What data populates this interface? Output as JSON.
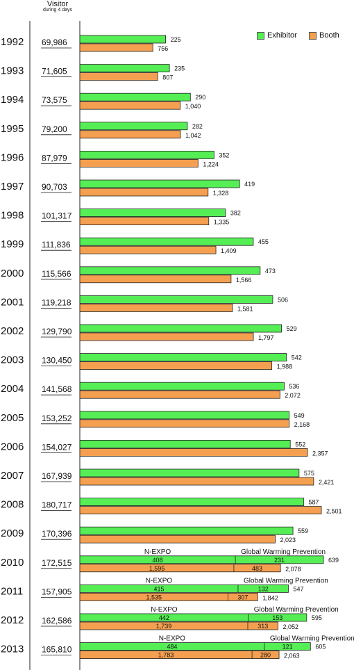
{
  "header": {
    "visitor_label": "Visitor",
    "visitor_sub": "during 4 days"
  },
  "legend": [
    {
      "name": "Exhibitor",
      "color": "#55ee55"
    },
    {
      "name": "Booth",
      "color": "#f5a050"
    }
  ],
  "chart_data": {
    "type": "bar",
    "categories": [
      "1992",
      "1993",
      "1994",
      "1995",
      "1996",
      "1997",
      "1998",
      "1999",
      "2000",
      "2001",
      "2002",
      "2003",
      "2004",
      "2005",
      "2006",
      "2007",
      "2008",
      "2009",
      "2010",
      "2011",
      "2012",
      "2013"
    ],
    "visitors": [
      "69,986",
      "71,605",
      "73,575",
      "79,200",
      "87,979",
      "90,703",
      "101,317",
      "111,836",
      "115,566",
      "119,218",
      "129,790",
      "130,450",
      "141,568",
      "153,252",
      "154,027",
      "167,939",
      "180,717",
      "170,396",
      "172,515",
      "157,905",
      "162,586",
      "165,810"
    ],
    "series": [
      {
        "name": "Exhibitor",
        "values": [
          225,
          235,
          290,
          282,
          352,
          419,
          382,
          455,
          473,
          506,
          529,
          542,
          536,
          549,
          552,
          575,
          587,
          559,
          639,
          547,
          595,
          605
        ]
      },
      {
        "name": "Booth",
        "values": [
          756,
          807,
          1040,
          1042,
          1224,
          1328,
          1335,
          1409,
          1566,
          1581,
          1797,
          1988,
          2072,
          2168,
          2357,
          2421,
          2501,
          2023,
          2078,
          1842,
          2052,
          2063
        ]
      }
    ],
    "value_labels": {
      "Exhibitor": [
        "225",
        "235",
        "290",
        "282",
        "352",
        "419",
        "382",
        "455",
        "473",
        "506",
        "529",
        "542",
        "536",
        "549",
        "552",
        "575",
        "587",
        "559",
        "639",
        "547",
        "595",
        "605"
      ],
      "Booth": [
        "756",
        "807",
        "1,040",
        "1,042",
        "1,224",
        "1,328",
        "1,335",
        "1,409",
        "1,566",
        "1,581",
        "1,797",
        "1,988",
        "2,072",
        "2,168",
        "2,357",
        "2,421",
        "2,501",
        "2,023",
        "2,078",
        "1,842",
        "2,052",
        "2,063"
      ]
    },
    "segments": {
      "years": [
        "2010",
        "2011",
        "2012",
        "2013"
      ],
      "labels": [
        "N-EXPO",
        "Global Warming Prevention"
      ],
      "exhibitor": [
        {
          "nexpo": 408,
          "gwp": 231
        },
        {
          "nexpo": 415,
          "gwp": 132
        },
        {
          "nexpo": 442,
          "gwp": 153
        },
        {
          "nexpo": 484,
          "gwp": 121
        }
      ],
      "booth": [
        {
          "nexpo": "1,595",
          "gwp": "483",
          "nexpo_val": 1595,
          "gwp_val": 483
        },
        {
          "nexpo": "1,535",
          "gwp": "307",
          "nexpo_val": 1535,
          "gwp_val": 307
        },
        {
          "nexpo": "1,739",
          "gwp": "313",
          "nexpo_val": 1739,
          "gwp_val": 313
        },
        {
          "nexpo": "1,783",
          "gwp": "280",
          "nexpo_val": 1783,
          "gwp_val": 280
        }
      ]
    }
  }
}
